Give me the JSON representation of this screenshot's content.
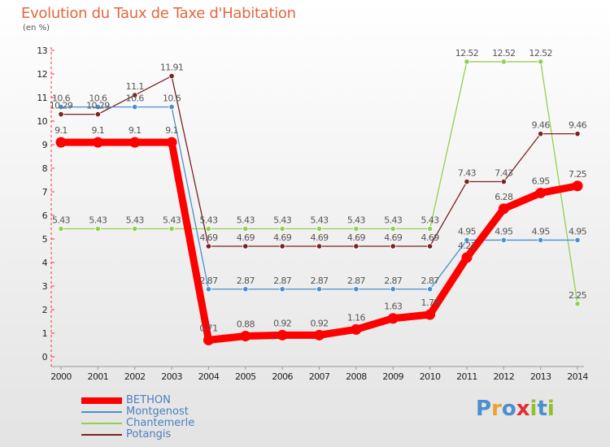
{
  "chart_data": {
    "type": "line",
    "title": "Evolution du Taux de Taxe d'Habitation",
    "subtitle": "(en %)",
    "ylim": [
      0,
      13
    ],
    "yticks": [
      "0",
      "1",
      "2",
      "3",
      "4",
      "5",
      "6",
      "7",
      "8",
      "9",
      "10",
      "11",
      "12",
      "13"
    ],
    "x": [
      "2000",
      "2001",
      "2002",
      "2003",
      "2004",
      "2005",
      "2006",
      "2007",
      "2008",
      "2009",
      "2010",
      "2011",
      "2012",
      "2013",
      "2014"
    ],
    "grid": false,
    "legend_position": "bottom-left",
    "series": [
      {
        "name": "Chantemerle",
        "color": "#92d050",
        "values": [
          5.43,
          5.43,
          5.43,
          5.43,
          5.43,
          5.43,
          5.43,
          5.43,
          5.43,
          5.43,
          5.43,
          12.52,
          12.52,
          12.52,
          2.25
        ],
        "labels": [
          "5.43",
          "5.43",
          "5.43",
          "5.43",
          "5.43",
          "5.43",
          "5.43",
          "5.43",
          "5.43",
          "5.43",
          "5.43",
          "12.52",
          "12.52",
          "12.52",
          "2.25"
        ]
      },
      {
        "name": "Potangis",
        "color": "#7a2222",
        "values": [
          10.29,
          10.29,
          11.1,
          11.91,
          4.69,
          4.69,
          4.69,
          4.69,
          4.69,
          4.69,
          4.69,
          7.43,
          7.43,
          9.46,
          9.46
        ],
        "labels": [
          "10.29",
          "10.29",
          "11.1",
          "11.91",
          "4.69",
          "4.69",
          "4.69",
          "4.69",
          "4.69",
          "4.69",
          "4.69",
          "7.43",
          "7.43",
          "9.46",
          "9.46"
        ]
      },
      {
        "name": "Montgenost",
        "color": "#4a8fd0",
        "values": [
          10.6,
          10.6,
          10.6,
          10.6,
          2.87,
          2.87,
          2.87,
          2.87,
          2.87,
          2.87,
          2.87,
          4.95,
          4.95,
          4.95,
          4.95
        ],
        "labels": [
          "10.6",
          "10.6",
          "10.6",
          "10.6",
          "2.87",
          "2.87",
          "2.87",
          "2.87",
          "2.87",
          "2.87",
          "2.87",
          "4.95",
          "4.95",
          "4.95",
          "4.95"
        ]
      },
      {
        "name": "BETHON",
        "color": "#ff0000",
        "values": [
          9.1,
          9.1,
          9.1,
          9.1,
          0.71,
          0.88,
          0.92,
          0.92,
          1.16,
          1.63,
          1.79,
          4.21,
          6.28,
          6.95,
          7.25
        ],
        "labels": [
          "9.1",
          "9.1",
          "9.1",
          "9.1",
          "0.71",
          "0.88",
          "0.92",
          "0.92",
          "1.16",
          "1.63",
          "1.79",
          "4.21",
          "6.28",
          "6.95",
          "7.25"
        ]
      }
    ]
  },
  "legend": {
    "items": [
      {
        "label": "BETHON",
        "color": "#ff0000"
      },
      {
        "label": "Montgenost",
        "color": "#4a8fd0"
      },
      {
        "label": "Chantemerle",
        "color": "#92d050"
      },
      {
        "label": "Potangis",
        "color": "#7a2222"
      }
    ]
  },
  "logo": {
    "text": "Proxiti",
    "colors": [
      "#4a8fd0",
      "#f0a030",
      "#4a8fd0",
      "#e03030",
      "#92c030",
      "#4a8fd0",
      "#92c030"
    ]
  }
}
